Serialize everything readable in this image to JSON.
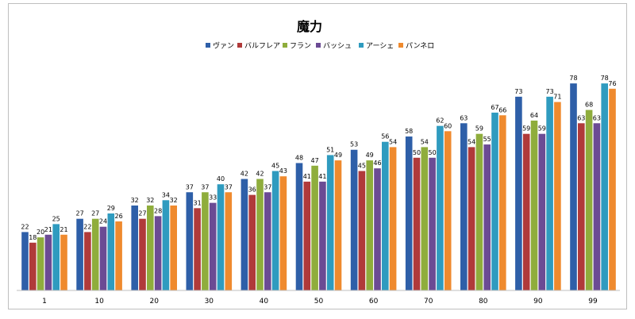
{
  "chart_data": {
    "type": "bar",
    "title": "魔力",
    "xlabel": "",
    "ylabel": "",
    "ylim": [
      0,
      90
    ],
    "grid": false,
    "legend_position": "top",
    "categories": [
      "1",
      "10",
      "20",
      "30",
      "40",
      "50",
      "60",
      "70",
      "80",
      "90",
      "99"
    ],
    "series": [
      {
        "name": "ヴァン",
        "color": "#2e5fa8",
        "values": [
          22,
          27,
          32,
          37,
          42,
          48,
          53,
          58,
          63,
          73,
          78
        ]
      },
      {
        "name": "バルフレア",
        "color": "#b03a3a",
        "values": [
          18,
          22,
          27,
          31,
          36,
          41,
          45,
          50,
          54,
          59,
          63
        ]
      },
      {
        "name": "フラン",
        "color": "#8fad3c",
        "values": [
          20,
          27,
          32,
          37,
          42,
          47,
          49,
          54,
          59,
          64,
          68
        ]
      },
      {
        "name": "バッシュ",
        "color": "#6b4b94",
        "values": [
          21,
          24,
          28,
          33,
          37,
          41,
          46,
          50,
          55,
          59,
          63
        ]
      },
      {
        "name": "アーシェ",
        "color": "#2f9bbf",
        "values": [
          25,
          29,
          34,
          40,
          45,
          51,
          56,
          62,
          67,
          73,
          78
        ]
      },
      {
        "name": "パンネロ",
        "color": "#ef8a2e",
        "values": [
          21,
          26,
          32,
          37,
          43,
          49,
          54,
          60,
          66,
          71,
          76
        ]
      }
    ]
  }
}
